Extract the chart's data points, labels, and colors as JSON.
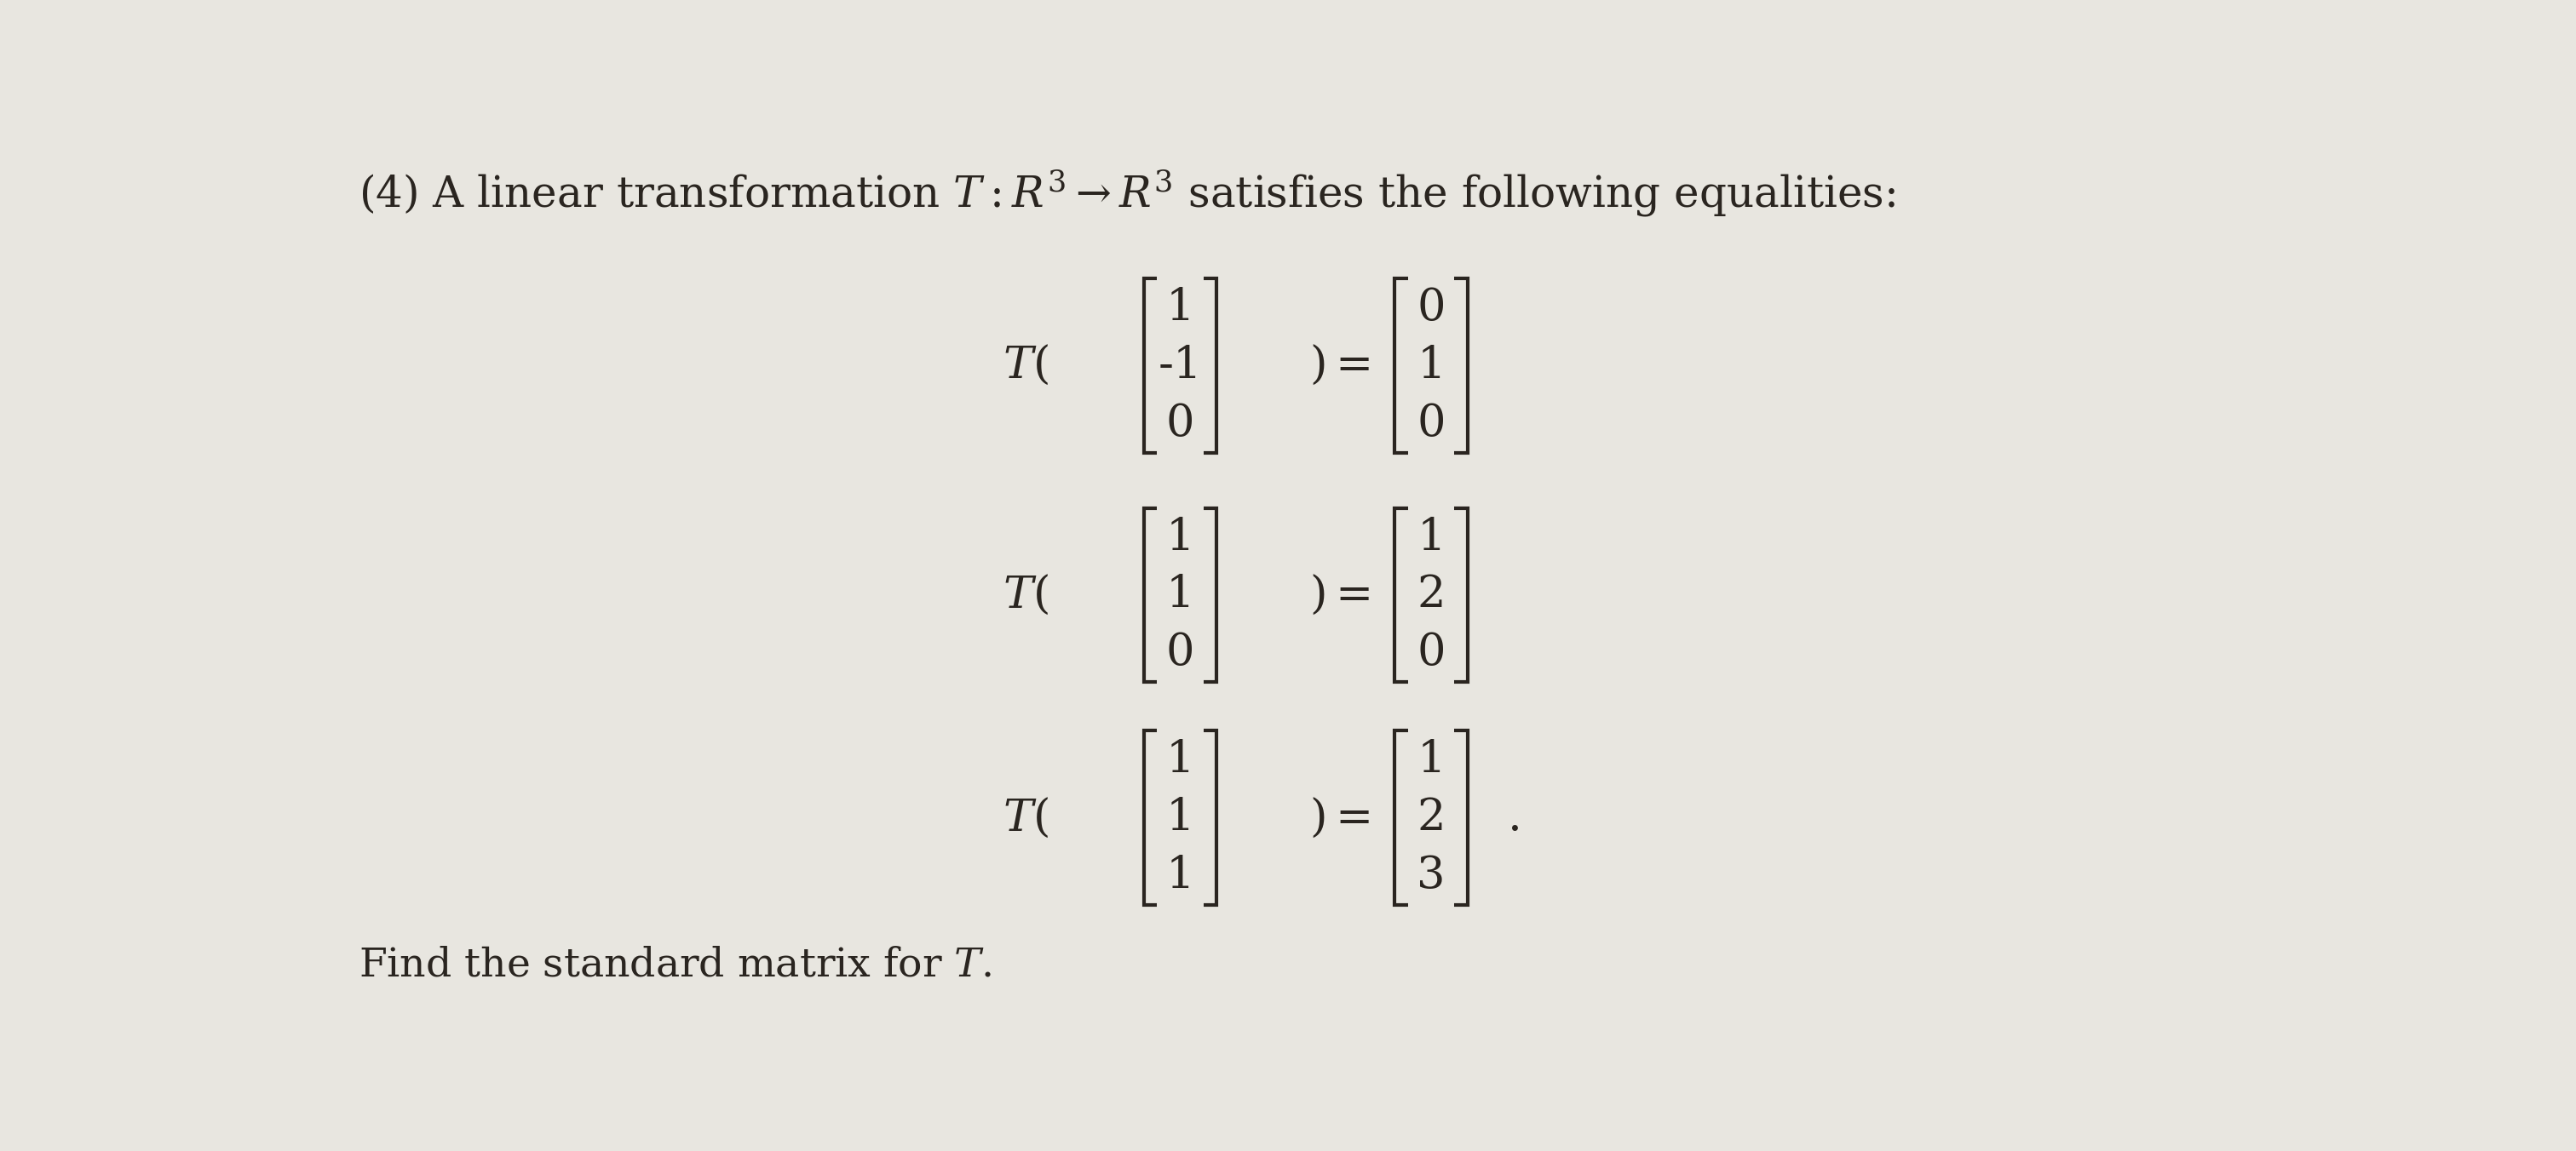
{
  "background_color": "#e8e6e0",
  "title_line1": "(4) A linear transformation ",
  "title_math": "T : R^3 \\rightarrow R^3",
  "title_line2": " satisfies the following equalities:",
  "eq1_lhs": [
    "1",
    "-1",
    "0"
  ],
  "eq1_rhs": [
    "0",
    "1",
    "0"
  ],
  "eq2_lhs": [
    "1",
    "1",
    "0"
  ],
  "eq2_rhs": [
    "1",
    "2",
    "0"
  ],
  "eq3_lhs": [
    "1",
    "1",
    "1"
  ],
  "eq3_rhs": [
    "1",
    "2",
    "3"
  ],
  "footer_text": "Find the standard matrix for ",
  "footer_T": "T",
  "footer_dot": ".",
  "text_color": "#2a2520",
  "font_size_title": 36,
  "font_size_eq": 38,
  "font_size_footer": 34,
  "bracket_lw": 3.0
}
